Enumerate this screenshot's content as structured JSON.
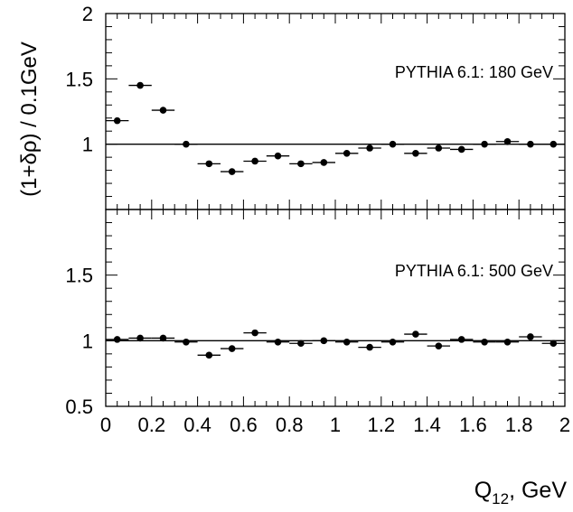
{
  "chart_data": {
    "type": "scatter",
    "shared_x_axis": {
      "xlabel_main": "Q",
      "xlabel_sub": "12",
      "xlabel_suffix": ", GeV",
      "xlim": [
        0,
        2
      ],
      "tick_values": [
        0,
        0.2,
        0.4,
        0.6,
        0.8,
        1,
        1.2,
        1.4,
        1.6,
        1.8,
        2
      ],
      "tick_labels": [
        "0",
        "0.2",
        "0.4",
        "0.6",
        "0.8",
        "1",
        "1.2",
        "1.4",
        "1.6",
        "1.8",
        "2"
      ],
      "bin_width": 0.1
    },
    "ylabel": "(1+δρ) / 0.1GeV",
    "reference_line": 1,
    "panels": [
      {
        "annotation": "PYTHIA 6.1: 180 GeV",
        "ylim": [
          0.5,
          2
        ],
        "y_tick_values": [
          1,
          1.5,
          2
        ],
        "y_tick_labels": [
          "1",
          "1.5",
          "2"
        ],
        "x": [
          0.05,
          0.15,
          0.25,
          0.35,
          0.45,
          0.55,
          0.65,
          0.75,
          0.85,
          0.95,
          1.05,
          1.15,
          1.25,
          1.35,
          1.45,
          1.55,
          1.65,
          1.75,
          1.85,
          1.95
        ],
        "y": [
          1.18,
          1.45,
          1.26,
          1.0,
          0.85,
          0.79,
          0.87,
          0.91,
          0.85,
          0.86,
          0.93,
          0.97,
          1.0,
          0.93,
          0.97,
          0.96,
          1.0,
          1.02,
          1.0,
          1.0
        ]
      },
      {
        "annotation": "PYTHIA 6.1: 500 GeV",
        "ylim": [
          0.5,
          2
        ],
        "y_tick_values": [
          0.5,
          1,
          1.5
        ],
        "y_tick_labels": [
          "0.5",
          "1",
          "1.5"
        ],
        "x": [
          0.05,
          0.15,
          0.25,
          0.35,
          0.45,
          0.55,
          0.65,
          0.75,
          0.85,
          0.95,
          1.05,
          1.15,
          1.25,
          1.35,
          1.45,
          1.55,
          1.65,
          1.75,
          1.85,
          1.95
        ],
        "y": [
          1.01,
          1.02,
          1.02,
          0.99,
          0.89,
          0.94,
          1.06,
          0.99,
          0.98,
          1.0,
          0.99,
          0.95,
          0.99,
          1.05,
          0.96,
          1.01,
          0.99,
          0.99,
          1.03,
          0.98
        ]
      }
    ]
  }
}
